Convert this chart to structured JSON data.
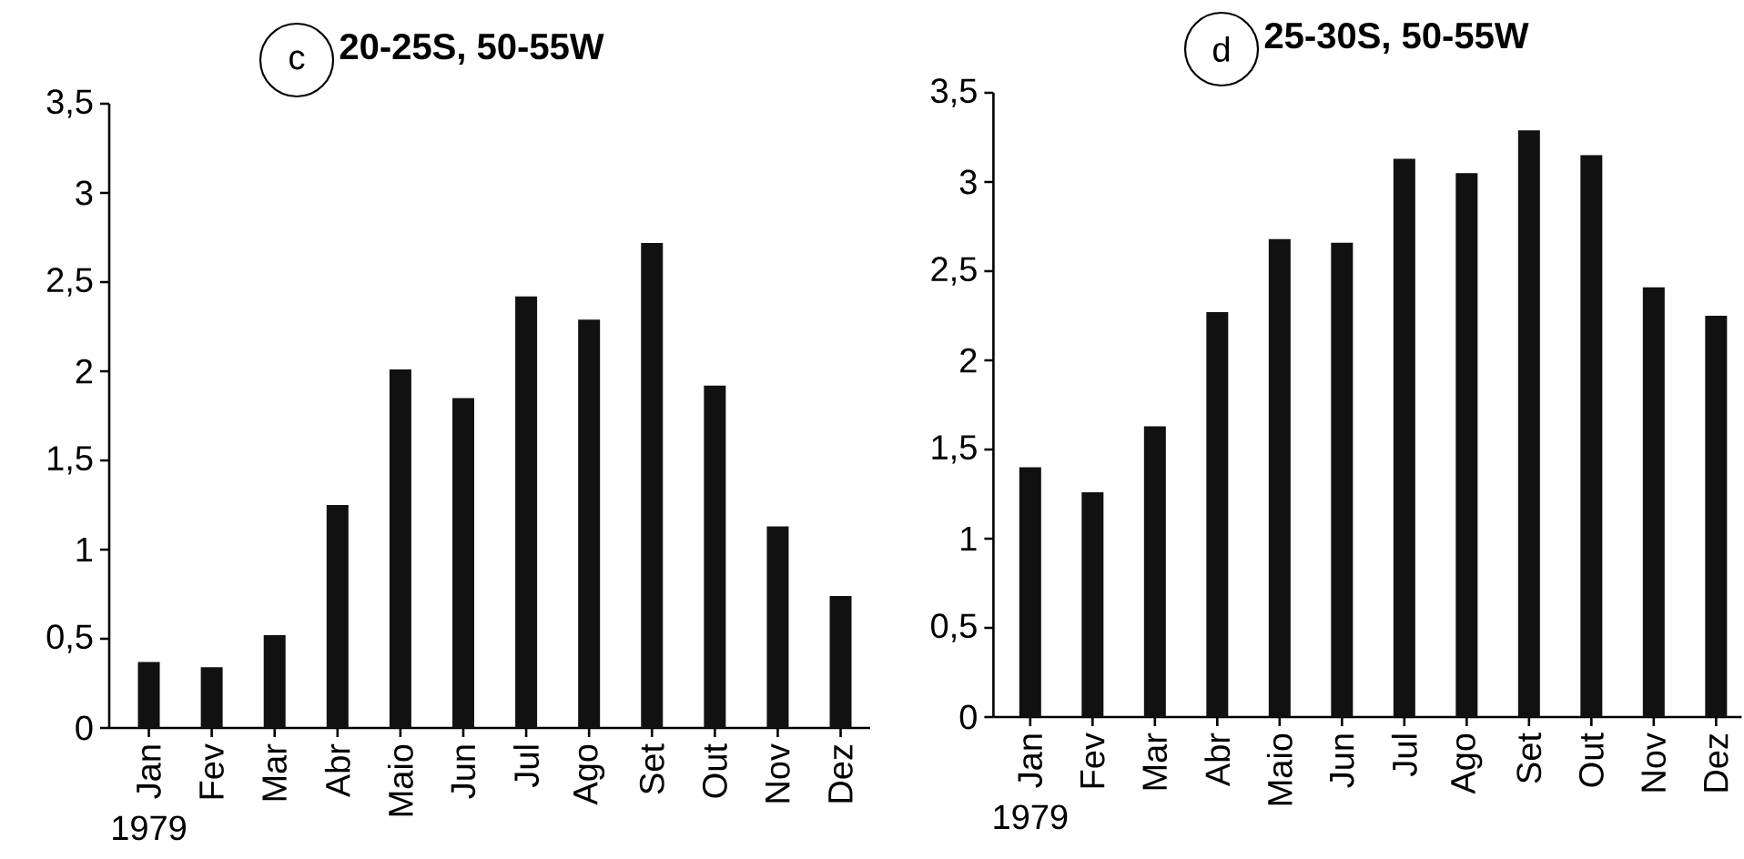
{
  "chart_data": [
    {
      "type": "bar",
      "title": "20-25S, 50-55W",
      "annotations": [
        "c"
      ],
      "xlabel": "1979",
      "categories": [
        "Jan",
        "Fev",
        "Mar",
        "Abr",
        "Maio",
        "Jun",
        "Jul",
        "Ago",
        "Set",
        "Out",
        "Nov",
        "Dez"
      ],
      "values": [
        0.37,
        0.34,
        0.52,
        1.25,
        2.01,
        1.85,
        2.42,
        2.29,
        2.72,
        1.92,
        1.13,
        0.74
      ],
      "color": "#111111",
      "ylim": [
        0,
        3.5
      ],
      "yticks": [
        0,
        {
          "value": 0.5,
          "label": "0,5"
        },
        1,
        {
          "value": 1.5,
          "label": "1,5"
        },
        2,
        {
          "value": 2.5,
          "label": "2,5"
        },
        3,
        {
          "value": 3.5,
          "label": "3,5"
        }
      ]
    },
    {
      "type": "bar",
      "title": "25-30S, 50-55W",
      "annotations": [
        "d"
      ],
      "xlabel": "1979",
      "categories": [
        "Jan",
        "Fev",
        "Mar",
        "Abr",
        "Maio",
        "Jun",
        "Jul",
        "Ago",
        "Set",
        "Out",
        "Nov",
        "Dez"
      ],
      "values": [
        1.4,
        1.26,
        1.63,
        2.27,
        2.68,
        2.66,
        3.13,
        3.05,
        3.29,
        3.15,
        2.41,
        2.25
      ],
      "color": "#111111",
      "ylim": [
        0,
        3.5
      ],
      "yticks": [
        0,
        {
          "value": 0.5,
          "label": "0,5"
        },
        1,
        {
          "value": 1.5,
          "label": "1,5"
        },
        2,
        {
          "value": 2.5,
          "label": "2,5"
        },
        3,
        {
          "value": 3.5,
          "label": "3,5"
        }
      ]
    }
  ]
}
